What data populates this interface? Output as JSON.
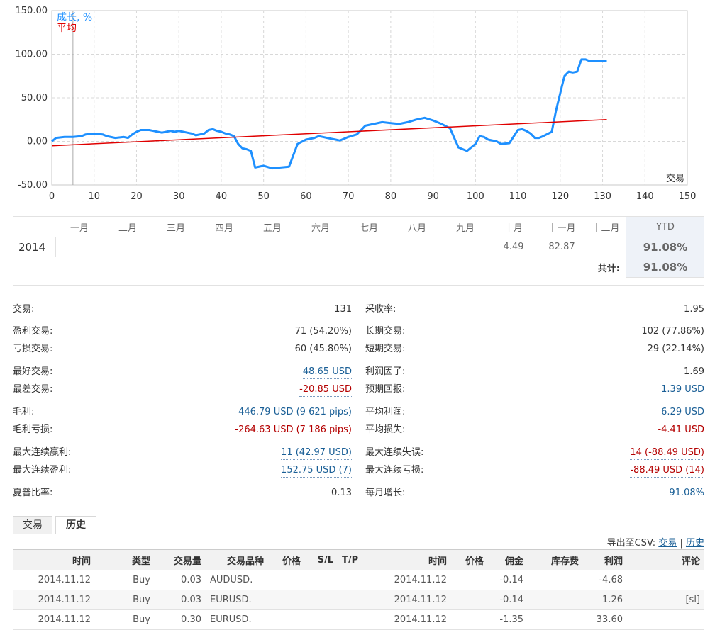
{
  "chart_data": {
    "type": "line",
    "y_ticks": [
      "150.00",
      "100.00",
      "50.00",
      "0.00",
      "-50.00"
    ],
    "x_ticks": [
      "0",
      "10",
      "20",
      "30",
      "40",
      "50",
      "60",
      "70",
      "80",
      "90",
      "100",
      "110",
      "120",
      "130",
      "140",
      "150"
    ],
    "xlabel": "交易",
    "xlim": [
      0,
      150
    ],
    "ylim": [
      -50,
      150
    ],
    "grid": true,
    "vertical_marker_x": 5,
    "series": [
      {
        "name": "成长, %",
        "color": "#1e90ff",
        "x": [
          0,
          1,
          3,
          5,
          7,
          8,
          10,
          12,
          13,
          15,
          17,
          18,
          19,
          20,
          21,
          22,
          23,
          24,
          25,
          26,
          27,
          28,
          29,
          30,
          31,
          32,
          33,
          34,
          35,
          36,
          37,
          38,
          39,
          40,
          41,
          42,
          43,
          44,
          45,
          46,
          47,
          48,
          50,
          52,
          54,
          56,
          58,
          60,
          62,
          63,
          64,
          65,
          66,
          67,
          68,
          70,
          72,
          74,
          76,
          78,
          80,
          82,
          84,
          86,
          88,
          90,
          92,
          94,
          96,
          98,
          100,
          101,
          102,
          103,
          105,
          106,
          108,
          110,
          111,
          112,
          113,
          114,
          115,
          116,
          118,
          119,
          120,
          121,
          122,
          123,
          124,
          125,
          126,
          127,
          128,
          129,
          130,
          131
        ],
        "y": [
          0,
          4,
          5,
          5,
          6,
          8,
          9,
          8,
          6,
          4,
          5,
          4,
          8,
          11,
          13,
          13,
          13,
          12,
          11,
          10,
          11,
          12,
          11,
          12,
          11,
          10,
          9,
          7,
          8,
          9,
          13,
          14,
          12,
          11,
          9,
          8,
          6,
          -3,
          -8,
          -9,
          -11,
          -30,
          -28,
          -31,
          -30,
          -29,
          -3,
          2,
          4,
          6,
          5,
          4,
          3,
          2,
          1,
          5,
          8,
          18,
          20,
          22,
          21,
          20,
          22,
          25,
          27,
          24,
          20,
          15,
          -7,
          -11,
          -3,
          6,
          5,
          2,
          0,
          -3,
          -2,
          13,
          14,
          12,
          9,
          4,
          4,
          6,
          11,
          35,
          55,
          75,
          80,
          79,
          80,
          94,
          94,
          92,
          92,
          92,
          92,
          92
        ]
      },
      {
        "name": "平均",
        "color": "#e00000",
        "x": [
          0,
          131
        ],
        "y": [
          -5,
          25
        ]
      }
    ]
  },
  "monthly": {
    "months": [
      "一月",
      "二月",
      "三月",
      "四月",
      "五月",
      "六月",
      "七月",
      "八月",
      "九月",
      "十月",
      "十一月",
      "十二月"
    ],
    "ytd_label": "YTD",
    "year": "2014",
    "values": [
      "",
      "",
      "",
      "",
      "",
      "",
      "",
      "",
      "",
      "4.49",
      "82.87",
      ""
    ],
    "ytd": "91.08%",
    "total_label": "共计:",
    "total": "91.08%"
  },
  "stats_left": [
    {
      "label": "交易:",
      "value": "131"
    },
    {
      "label": "盈利交易:",
      "value": "71 (54.20%)"
    },
    {
      "label": "亏损交易:",
      "value": "60 (45.80%)"
    },
    {
      "label": "最好交易:",
      "value": "48.65 USD"
    },
    {
      "label": "最差交易:",
      "value": "-20.85 USD"
    },
    {
      "label": "毛利:",
      "value": "446.79 USD (9 621 pips)"
    },
    {
      "label": "毛利亏损:",
      "value": "-264.63 USD (7 186 pips)"
    },
    {
      "label": "最大连续赢利:",
      "value": "11 (42.97 USD)"
    },
    {
      "label": "最大连续盈利:",
      "value": "152.75 USD (7)"
    },
    {
      "label": "夏普比率:",
      "value": "0.13"
    }
  ],
  "stats_right": [
    {
      "label": "采收率:",
      "value": "1.95"
    },
    {
      "label": "长期交易:",
      "value": "102 (77.86%)"
    },
    {
      "label": "短期交易:",
      "value": "29 (22.14%)"
    },
    {
      "label": "利润因子:",
      "value": "1.69"
    },
    {
      "label": "预期回报:",
      "value": "1.39 USD"
    },
    {
      "label": "平均利润:",
      "value": "6.29 USD"
    },
    {
      "label": "平均损失:",
      "value": "-4.41 USD"
    },
    {
      "label": "最大连续失误:",
      "value": "14 (-88.49 USD)"
    },
    {
      "label": "最大连续亏损:",
      "value": "-88.49 USD (14)"
    },
    {
      "label": "每月增长:",
      "value": "91.08%"
    }
  ],
  "tabs": {
    "trades": "交易",
    "history": "历史"
  },
  "csv": {
    "label": "导出至CSV:",
    "trades": "交易",
    "sep": "|",
    "history": "历史"
  },
  "history": {
    "headers": [
      "时间",
      "类型",
      "交易量",
      "交易品种",
      "价格",
      "S/L",
      "T/P",
      "时间",
      "价格",
      "佣金",
      "库存费",
      "利润",
      "评论"
    ],
    "rows": [
      [
        "2014.11.12",
        "Buy",
        "0.03",
        "AUDUSD.",
        "",
        "",
        "",
        "2014.11.12",
        "",
        "-0.14",
        "",
        "-4.68",
        ""
      ],
      [
        "2014.11.12",
        "Buy",
        "0.03",
        "EURUSD.",
        "",
        "",
        "",
        "2014.11.12",
        "",
        "-0.14",
        "",
        "1.26",
        "[sl]"
      ],
      [
        "2014.11.12",
        "Buy",
        "0.30",
        "EURUSD.",
        "",
        "",
        "",
        "2014.11.12",
        "",
        "-1.35",
        "",
        "33.60",
        ""
      ]
    ]
  }
}
